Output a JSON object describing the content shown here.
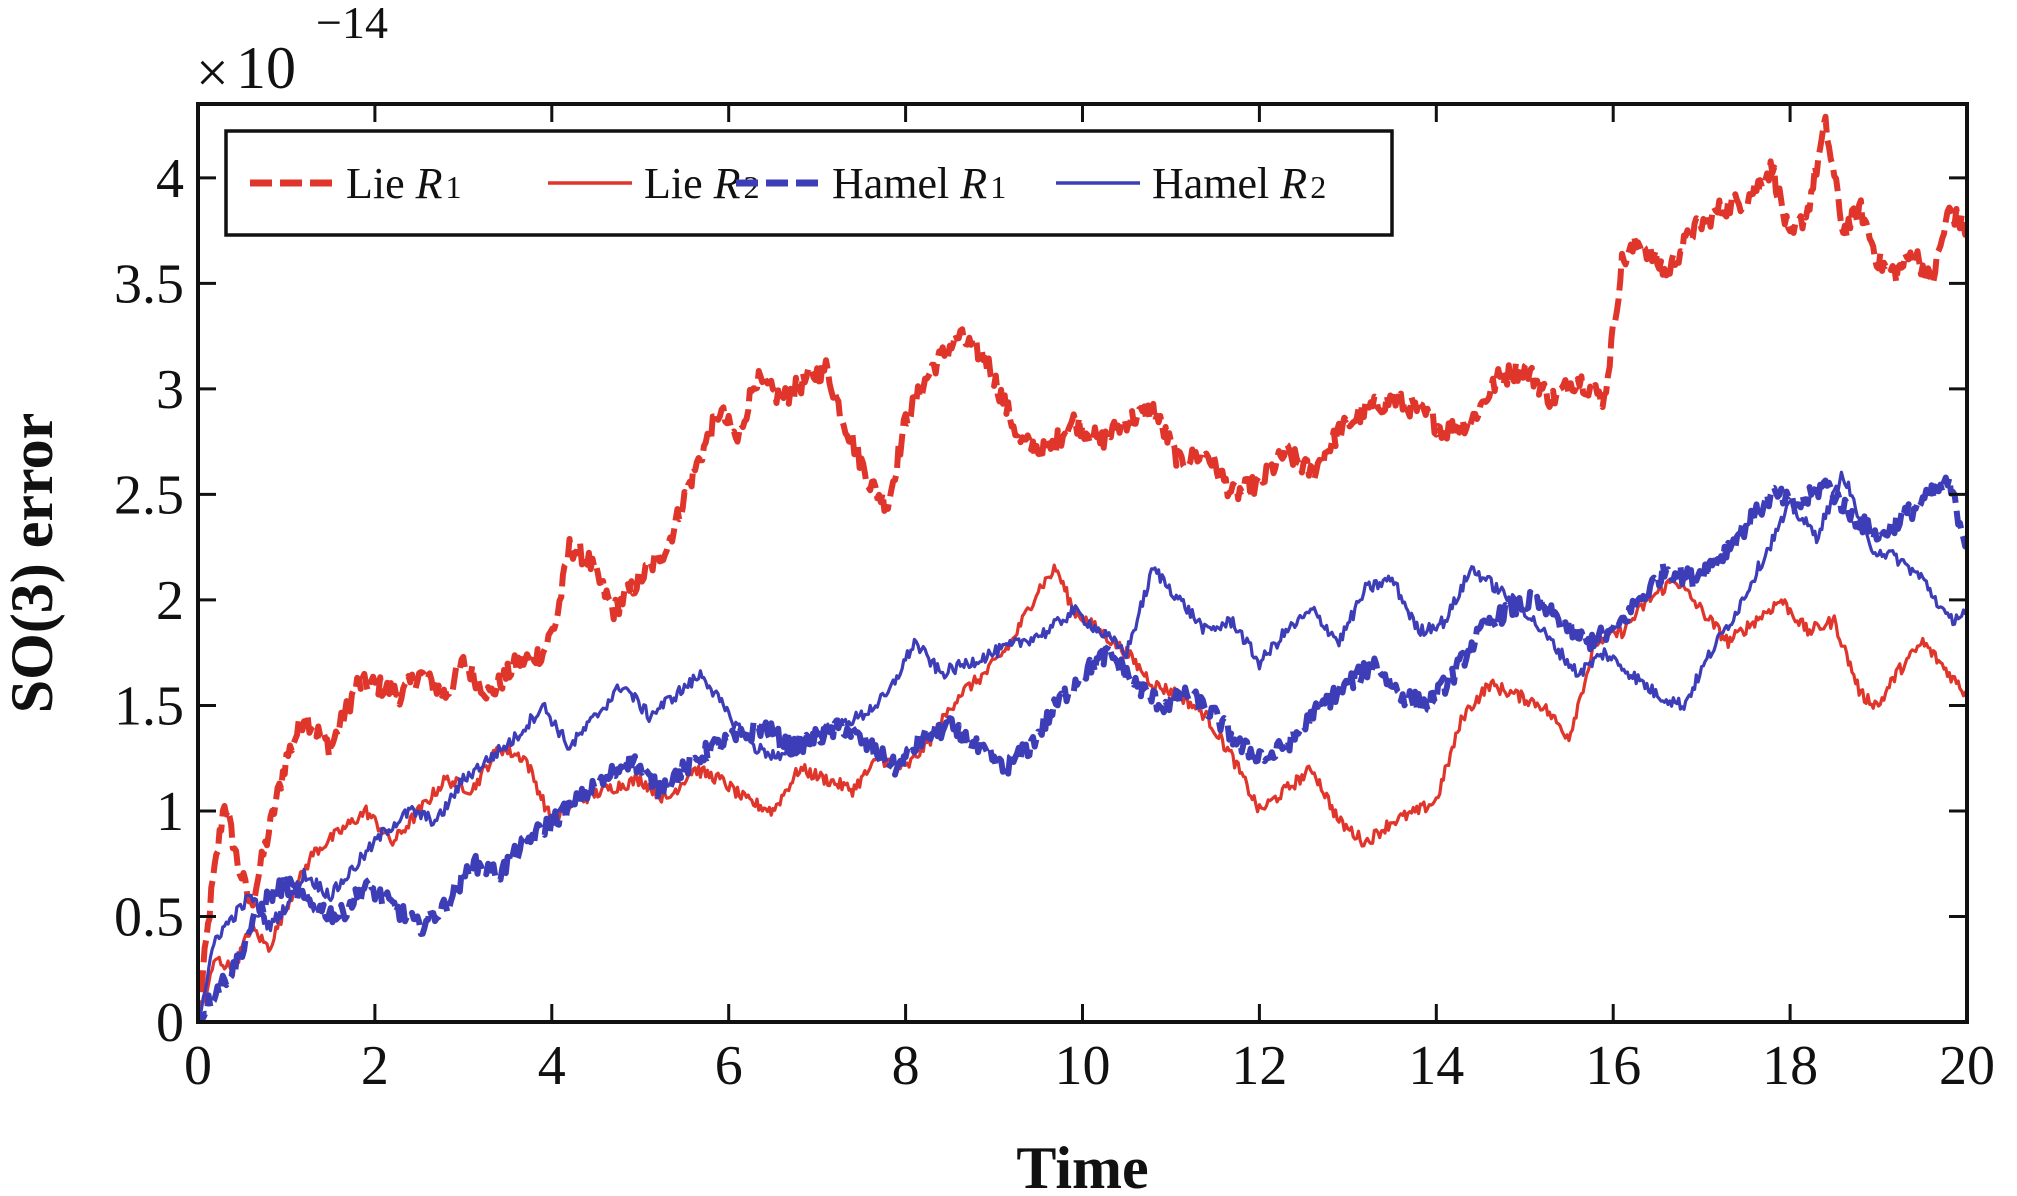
{
  "chart_data": {
    "type": "line",
    "title": "",
    "xlabel": "Time",
    "ylabel": "SO(3) error",
    "xlim": [
      0,
      20
    ],
    "ylim": [
      0,
      4.35
    ],
    "y_exponent_label": {
      "times": "×",
      "base": "10",
      "power": "−14"
    },
    "x_ticks": [
      0,
      2,
      4,
      6,
      8,
      10,
      12,
      14,
      16,
      18,
      20
    ],
    "x_tick_labels": [
      "0",
      "2",
      "4",
      "6",
      "8",
      "10",
      "12",
      "14",
      "16",
      "18",
      "20"
    ],
    "y_ticks": [
      0,
      0.5,
      1,
      1.5,
      2,
      2.5,
      3,
      3.5,
      4
    ],
    "y_tick_labels": [
      "0",
      "0.5",
      "1",
      "1.5",
      "2",
      "2.5",
      "3",
      "3.5",
      "4"
    ],
    "grid": false,
    "legend_position": "top-left",
    "series": [
      {
        "name": "Lie R1",
        "label_main": "Lie ",
        "label_var": "R",
        "label_sub": "1",
        "color": "#e0352b",
        "style": "dashed",
        "noise": 0.05,
        "x": [
          0,
          0.15,
          0.3,
          0.45,
          0.6,
          0.8,
          1.0,
          1.2,
          1.5,
          1.8,
          2.0,
          2.3,
          2.5,
          2.8,
          3.0,
          3.3,
          3.6,
          3.9,
          4.05,
          4.2,
          4.4,
          4.7,
          5.0,
          5.3,
          5.6,
          5.9,
          6.1,
          6.3,
          6.6,
          6.9,
          7.1,
          7.3,
          7.6,
          7.8,
          8.0,
          8.3,
          8.6,
          8.9,
          9.1,
          9.3,
          9.6,
          9.9,
          10.2,
          10.5,
          10.8,
          11.1,
          11.4,
          11.7,
          12.0,
          12.3,
          12.6,
          12.9,
          13.2,
          13.5,
          13.8,
          14.1,
          14.4,
          14.7,
          15.0,
          15.3,
          15.6,
          15.9,
          16.1,
          16.3,
          16.6,
          16.9,
          17.2,
          17.5,
          17.8,
          18.0,
          18.2,
          18.4,
          18.6,
          18.8,
          19.0,
          19.2,
          19.4,
          19.6,
          19.8,
          20.0
        ],
        "y": [
          0,
          0.6,
          1.05,
          0.75,
          0.55,
          0.9,
          1.25,
          1.45,
          1.3,
          1.6,
          1.6,
          1.55,
          1.65,
          1.55,
          1.7,
          1.55,
          1.7,
          1.75,
          1.9,
          2.25,
          2.2,
          1.95,
          2.1,
          2.25,
          2.6,
          2.9,
          2.75,
          3.05,
          2.95,
          3.05,
          3.1,
          2.85,
          2.55,
          2.45,
          2.85,
          3.1,
          3.25,
          3.15,
          2.95,
          2.75,
          2.7,
          2.85,
          2.75,
          2.85,
          2.9,
          2.65,
          2.7,
          2.5,
          2.55,
          2.7,
          2.6,
          2.8,
          2.9,
          2.95,
          2.9,
          2.8,
          2.85,
          3.05,
          3.1,
          2.95,
          3.05,
          2.95,
          3.6,
          3.7,
          3.55,
          3.75,
          3.85,
          3.9,
          4.05,
          3.7,
          3.85,
          4.25,
          3.75,
          3.85,
          3.6,
          3.55,
          3.65,
          3.5,
          3.85,
          3.75
        ]
      },
      {
        "name": "Lie R2",
        "label_main": "Lie ",
        "label_var": "R",
        "label_sub": "2",
        "color": "#e0352b",
        "style": "solid",
        "noise": 0.03,
        "x": [
          0,
          0.2,
          0.4,
          0.6,
          0.8,
          1.0,
          1.3,
          1.6,
          1.9,
          2.2,
          2.5,
          2.8,
          3.1,
          3.4,
          3.7,
          4.0,
          4.3,
          4.6,
          5.0,
          5.3,
          5.6,
          5.9,
          6.2,
          6.5,
          6.8,
          7.1,
          7.4,
          7.7,
          8.0,
          8.3,
          8.6,
          8.9,
          9.2,
          9.5,
          9.7,
          9.9,
          10.2,
          10.5,
          10.8,
          11.1,
          11.4,
          11.7,
          12.0,
          12.3,
          12.6,
          12.9,
          13.2,
          13.5,
          13.8,
          14.0,
          14.3,
          14.6,
          14.9,
          15.2,
          15.5,
          15.8,
          16.1,
          16.4,
          16.7,
          17.0,
          17.3,
          17.6,
          17.9,
          18.2,
          18.5,
          18.8,
          19.0,
          19.2,
          19.5,
          19.8,
          20.0
        ],
        "y": [
          0,
          0.3,
          0.25,
          0.45,
          0.35,
          0.55,
          0.8,
          0.9,
          1.0,
          0.85,
          1.0,
          1.15,
          1.1,
          1.3,
          1.25,
          0.95,
          1.05,
          1.1,
          1.15,
          1.05,
          1.2,
          1.15,
          1.05,
          1.0,
          1.2,
          1.15,
          1.1,
          1.25,
          1.2,
          1.35,
          1.55,
          1.65,
          1.8,
          2.05,
          2.15,
          1.95,
          1.85,
          1.75,
          1.6,
          1.55,
          1.45,
          1.25,
          1.0,
          1.1,
          1.2,
          0.95,
          0.85,
          0.95,
          1.0,
          1.05,
          1.45,
          1.6,
          1.55,
          1.5,
          1.35,
          1.8,
          1.85,
          2.0,
          2.1,
          1.95,
          1.8,
          1.9,
          2.0,
          1.85,
          1.9,
          1.55,
          1.5,
          1.65,
          1.8,
          1.65,
          1.55
        ]
      },
      {
        "name": "Hamel R1",
        "label_main": "Hamel ",
        "label_var": "R",
        "label_sub": "1",
        "color": "#3d3db8",
        "style": "dashed",
        "noise": 0.045,
        "x": [
          0,
          0.2,
          0.4,
          0.6,
          0.8,
          1.0,
          1.3,
          1.6,
          1.9,
          2.2,
          2.5,
          2.8,
          3.1,
          3.4,
          3.7,
          4.0,
          4.3,
          4.6,
          4.9,
          5.2,
          5.5,
          5.8,
          6.1,
          6.4,
          6.7,
          7.0,
          7.3,
          7.6,
          7.9,
          8.2,
          8.5,
          8.8,
          9.1,
          9.4,
          9.7,
          10.0,
          10.3,
          10.6,
          10.9,
          11.2,
          11.5,
          11.8,
          12.1,
          12.4,
          12.7,
          13.0,
          13.3,
          13.6,
          13.9,
          14.2,
          14.5,
          14.8,
          15.1,
          15.4,
          15.7,
          16.0,
          16.3,
          16.6,
          16.9,
          17.2,
          17.5,
          17.8,
          18.1,
          18.4,
          18.7,
          19.0,
          19.3,
          19.6,
          19.8,
          20.0
        ],
        "y": [
          0,
          0.15,
          0.25,
          0.45,
          0.6,
          0.65,
          0.55,
          0.5,
          0.65,
          0.55,
          0.45,
          0.55,
          0.75,
          0.7,
          0.85,
          0.95,
          1.05,
          1.15,
          1.25,
          1.1,
          1.2,
          1.3,
          1.35,
          1.4,
          1.3,
          1.35,
          1.4,
          1.3,
          1.2,
          1.35,
          1.4,
          1.3,
          1.2,
          1.3,
          1.5,
          1.65,
          1.75,
          1.6,
          1.5,
          1.55,
          1.45,
          1.3,
          1.25,
          1.35,
          1.5,
          1.6,
          1.7,
          1.55,
          1.5,
          1.65,
          1.85,
          1.95,
          2.0,
          1.9,
          1.8,
          1.85,
          2.0,
          2.15,
          2.1,
          2.2,
          2.35,
          2.5,
          2.45,
          2.55,
          2.4,
          2.3,
          2.4,
          2.5,
          2.55,
          2.25
        ]
      },
      {
        "name": "Hamel R2",
        "label_main": "Hamel ",
        "label_var": "R",
        "label_sub": "2",
        "color": "#3d3db8",
        "style": "solid",
        "noise": 0.03,
        "x": [
          0,
          0.2,
          0.4,
          0.6,
          0.8,
          1.0,
          1.2,
          1.5,
          1.8,
          2.1,
          2.4,
          2.7,
          3.0,
          3.3,
          3.6,
          3.9,
          4.2,
          4.5,
          4.8,
          5.1,
          5.4,
          5.7,
          6.0,
          6.3,
          6.6,
          6.9,
          7.2,
          7.5,
          7.8,
          8.1,
          8.4,
          8.7,
          9.0,
          9.3,
          9.6,
          9.9,
          10.2,
          10.5,
          10.8,
          11.1,
          11.4,
          11.7,
          12.0,
          12.3,
          12.6,
          12.9,
          13.2,
          13.5,
          13.8,
          14.1,
          14.4,
          14.7,
          15.0,
          15.3,
          15.6,
          15.9,
          16.2,
          16.5,
          16.8,
          17.1,
          17.4,
          17.7,
          18.0,
          18.3,
          18.6,
          18.9,
          19.2,
          19.5,
          19.8,
          20.0
        ],
        "y": [
          0,
          0.4,
          0.5,
          0.6,
          0.45,
          0.55,
          0.7,
          0.6,
          0.75,
          0.9,
          1.0,
          0.95,
          1.15,
          1.25,
          1.35,
          1.5,
          1.3,
          1.45,
          1.6,
          1.45,
          1.55,
          1.65,
          1.45,
          1.3,
          1.25,
          1.35,
          1.4,
          1.45,
          1.55,
          1.8,
          1.65,
          1.7,
          1.75,
          1.8,
          1.85,
          1.95,
          1.85,
          1.75,
          2.15,
          2.0,
          1.85,
          1.9,
          1.7,
          1.85,
          1.95,
          1.8,
          2.05,
          2.1,
          1.85,
          1.9,
          2.15,
          2.05,
          1.95,
          1.8,
          1.65,
          1.75,
          1.65,
          1.55,
          1.5,
          1.75,
          1.95,
          2.2,
          2.45,
          2.3,
          2.6,
          2.25,
          2.2,
          2.1,
          1.9,
          1.95
        ]
      }
    ]
  }
}
